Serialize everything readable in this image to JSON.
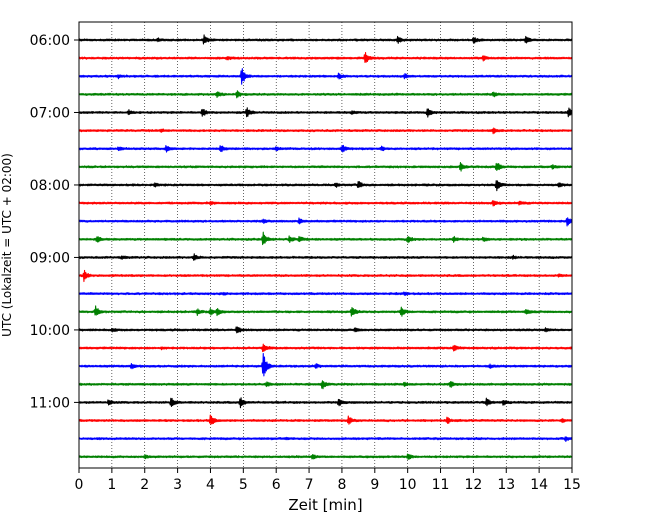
{
  "chart_data": {
    "type": "line",
    "title": "",
    "xlabel": "Zeit  [min]",
    "ylabel": "UTC (Lokalzeit = UTC + 02:00)",
    "xlim": [
      0,
      15
    ],
    "x_ticks": [
      0,
      1,
      2,
      3,
      4,
      5,
      6,
      7,
      8,
      9,
      10,
      11,
      12,
      13,
      14,
      15
    ],
    "y_tick_labels": [
      "06:00",
      "07:00",
      "08:00",
      "09:00",
      "10:00",
      "11:00"
    ],
    "trace_minutes_per_line": 15,
    "grid": "vertical dotted lines at each minute",
    "colors": [
      "#000000",
      "#ff0000",
      "#0000ff",
      "#008000"
    ],
    "series": [
      {
        "start": "06:00",
        "color": "#000000",
        "events": [
          {
            "t": 3.8,
            "amp": 0.9
          },
          {
            "t": 9.7,
            "amp": 0.7
          },
          {
            "t": 12.0,
            "amp": 0.6
          },
          {
            "t": 13.6,
            "amp": 0.7
          },
          {
            "t": 2.4,
            "amp": 0.3
          }
        ]
      },
      {
        "start": "06:15",
        "color": "#ff0000",
        "events": [
          {
            "t": 8.7,
            "amp": 1.2
          },
          {
            "t": 12.3,
            "amp": 0.5
          },
          {
            "t": 4.5,
            "amp": 0.3
          }
        ]
      },
      {
        "start": "06:30",
        "color": "#0000ff",
        "events": [
          {
            "t": 4.95,
            "amp": 1.8
          },
          {
            "t": 7.9,
            "amp": 0.5
          },
          {
            "t": 9.9,
            "amp": 0.5
          },
          {
            "t": 1.2,
            "amp": 0.3
          }
        ]
      },
      {
        "start": "06:45",
        "color": "#008000",
        "events": [
          {
            "t": 4.8,
            "amp": 0.7
          },
          {
            "t": 4.2,
            "amp": 0.5
          },
          {
            "t": 12.6,
            "amp": 0.4
          }
        ]
      },
      {
        "start": "07:00",
        "color": "#000000",
        "events": [
          {
            "t": 3.75,
            "amp": 0.9
          },
          {
            "t": 5.1,
            "amp": 1.0
          },
          {
            "t": 10.6,
            "amp": 0.9
          },
          {
            "t": 14.9,
            "amp": 0.9
          },
          {
            "t": 1.5,
            "amp": 0.5
          },
          {
            "t": 8.3,
            "amp": 0.3
          }
        ]
      },
      {
        "start": "07:15",
        "color": "#ff0000",
        "events": [
          {
            "t": 12.6,
            "amp": 0.6
          },
          {
            "t": 2.5,
            "amp": 0.3
          }
        ]
      },
      {
        "start": "07:30",
        "color": "#0000ff",
        "events": [
          {
            "t": 2.65,
            "amp": 0.7
          },
          {
            "t": 4.3,
            "amp": 0.8
          },
          {
            "t": 8.0,
            "amp": 0.8
          },
          {
            "t": 9.2,
            "amp": 0.4
          },
          {
            "t": 1.2,
            "amp": 0.3
          },
          {
            "t": 6.0,
            "amp": 0.3
          }
        ]
      },
      {
        "start": "07:45",
        "color": "#008000",
        "events": [
          {
            "t": 11.6,
            "amp": 0.9
          },
          {
            "t": 12.7,
            "amp": 1.1
          },
          {
            "t": 14.4,
            "amp": 0.3
          }
        ]
      },
      {
        "start": "08:00",
        "color": "#000000",
        "events": [
          {
            "t": 8.5,
            "amp": 0.8
          },
          {
            "t": 12.7,
            "amp": 1.3
          },
          {
            "t": 7.8,
            "amp": 0.4
          },
          {
            "t": 14.6,
            "amp": 0.3
          },
          {
            "t": 2.3,
            "amp": 0.3
          }
        ]
      },
      {
        "start": "08:15",
        "color": "#ff0000",
        "events": [
          {
            "t": 12.6,
            "amp": 0.7
          },
          {
            "t": 13.4,
            "amp": 0.4
          },
          {
            "t": 4.0,
            "amp": 0.3
          }
        ]
      },
      {
        "start": "08:30",
        "color": "#0000ff",
        "events": [
          {
            "t": 6.7,
            "amp": 0.6
          },
          {
            "t": 14.85,
            "amp": 1.1
          },
          {
            "t": 5.6,
            "amp": 0.3
          }
        ]
      },
      {
        "start": "08:45",
        "color": "#008000",
        "events": [
          {
            "t": 0.55,
            "amp": 0.6
          },
          {
            "t": 5.6,
            "amp": 1.4
          },
          {
            "t": 6.4,
            "amp": 0.7
          },
          {
            "t": 6.7,
            "amp": 0.6
          },
          {
            "t": 10.0,
            "amp": 0.6
          },
          {
            "t": 11.4,
            "amp": 0.5
          },
          {
            "t": 12.3,
            "amp": 0.4
          }
        ]
      },
      {
        "start": "09:00",
        "color": "#000000",
        "events": [
          {
            "t": 3.5,
            "amp": 0.6
          },
          {
            "t": 1.3,
            "amp": 0.3
          },
          {
            "t": 13.2,
            "amp": 0.3
          }
        ]
      },
      {
        "start": "09:15",
        "color": "#ff0000",
        "events": [
          {
            "t": 0.15,
            "amp": 1.0
          },
          {
            "t": 14.6,
            "amp": 0.2
          }
        ]
      },
      {
        "start": "09:30",
        "color": "#0000ff",
        "events": [
          {
            "t": 9.9,
            "amp": 0.3
          },
          {
            "t": 4.4,
            "amp": 0.2
          }
        ]
      },
      {
        "start": "09:45",
        "color": "#008000",
        "events": [
          {
            "t": 0.5,
            "amp": 1.1
          },
          {
            "t": 3.6,
            "amp": 0.5
          },
          {
            "t": 4.0,
            "amp": 0.6
          },
          {
            "t": 4.2,
            "amp": 0.6
          },
          {
            "t": 8.3,
            "amp": 1.1
          },
          {
            "t": 9.8,
            "amp": 1.0
          },
          {
            "t": 13.6,
            "amp": 0.6
          }
        ]
      },
      {
        "start": "10:00",
        "color": "#000000",
        "events": [
          {
            "t": 4.8,
            "amp": 0.8
          },
          {
            "t": 8.4,
            "amp": 0.5
          },
          {
            "t": 1.0,
            "amp": 0.3
          },
          {
            "t": 14.2,
            "amp": 0.3
          }
        ]
      },
      {
        "start": "10:15",
        "color": "#ff0000",
        "events": [
          {
            "t": 11.4,
            "amp": 0.7
          },
          {
            "t": 5.6,
            "amp": 1.0
          },
          {
            "t": 2.5,
            "amp": 0.2
          }
        ]
      },
      {
        "start": "10:30",
        "color": "#0000ff",
        "events": [
          {
            "t": 5.6,
            "amp": 3.2
          },
          {
            "t": 1.6,
            "amp": 0.5
          },
          {
            "t": 7.2,
            "amp": 0.4
          },
          {
            "t": 12.5,
            "amp": 0.3
          }
        ]
      },
      {
        "start": "10:45",
        "color": "#008000",
        "events": [
          {
            "t": 7.4,
            "amp": 0.9
          },
          {
            "t": 11.3,
            "amp": 0.6
          },
          {
            "t": 5.7,
            "amp": 0.4
          },
          {
            "t": 9.9,
            "amp": 0.3
          }
        ]
      },
      {
        "start": "11:00",
        "color": "#000000",
        "events": [
          {
            "t": 2.8,
            "amp": 1.0
          },
          {
            "t": 4.9,
            "amp": 1.1
          },
          {
            "t": 7.9,
            "amp": 0.8
          },
          {
            "t": 12.4,
            "amp": 0.8
          },
          {
            "t": 12.9,
            "amp": 0.5
          },
          {
            "t": 0.9,
            "amp": 0.5
          }
        ]
      },
      {
        "start": "11:15",
        "color": "#ff0000",
        "events": [
          {
            "t": 4.0,
            "amp": 1.3
          },
          {
            "t": 8.2,
            "amp": 0.9
          },
          {
            "t": 11.2,
            "amp": 0.6
          },
          {
            "t": 14.7,
            "amp": 0.3
          }
        ]
      },
      {
        "start": "11:30",
        "color": "#0000ff",
        "events": [
          {
            "t": 14.8,
            "amp": 0.4
          },
          {
            "t": 6.3,
            "amp": 0.2
          }
        ]
      },
      {
        "start": "11:45",
        "color": "#008000",
        "events": [
          {
            "t": 10.0,
            "amp": 0.6
          },
          {
            "t": 7.1,
            "amp": 0.4
          },
          {
            "t": 2.0,
            "amp": 0.3
          }
        ]
      }
    ]
  }
}
